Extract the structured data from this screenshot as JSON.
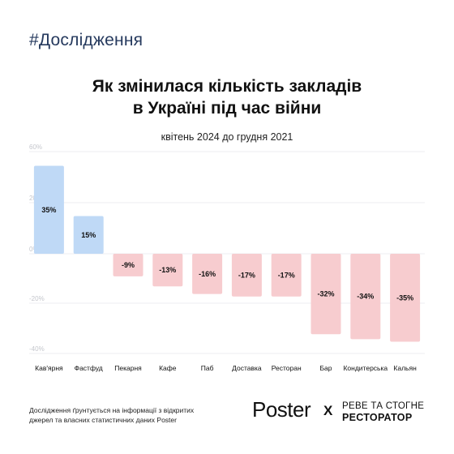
{
  "hashtag": "#Дослідження",
  "title_line1": "Як змінилася кількість закладів",
  "title_line2": "в Україні під час війни",
  "subtitle": "квітень 2024 до грудня 2021",
  "footer": {
    "note_line1": "Дослідження ґрунтується на інформації з відкритих",
    "note_line2": "джерел та власних статистичних даних Poster",
    "logo_poster": "Poster",
    "logo_x": "X",
    "logo_partner_line1": "РЕВЕ ТА СТОГНЕ",
    "logo_partner_line2": "РЕСТОРАТОР"
  },
  "colors": {
    "positive": "#bfd9f6",
    "negative": "#f7cccf",
    "gridline": "#ececf0",
    "ticklabel": "#c4c6cc"
  },
  "chart_data": {
    "type": "bar",
    "title": "Як змінилася кількість закладів в Україні під час війни",
    "subtitle": "квітень 2024 до грудня 2021",
    "categories": [
      "Кав'ярня",
      "Фастфуд",
      "Пекарня",
      "Кафе",
      "Паб",
      "Доставка",
      "Ресторан",
      "Бар",
      "Кондитерська",
      "Кальян"
    ],
    "values": [
      35,
      15,
      -9,
      -13,
      -16,
      -17,
      -17,
      -32,
      -34,
      -35
    ],
    "value_labels": [
      "35%",
      "15%",
      "-9%",
      "-13%",
      "-16%",
      "-17%",
      "-17%",
      "-32%",
      "-34%",
      "-35%"
    ],
    "yticks": [
      60,
      20,
      0,
      -20,
      -40
    ],
    "ytick_labels": [
      "60%",
      "20%",
      "0%",
      "-20%",
      "-40%"
    ],
    "ylim": [
      -40,
      40
    ],
    "grid": true,
    "legend": "none"
  }
}
